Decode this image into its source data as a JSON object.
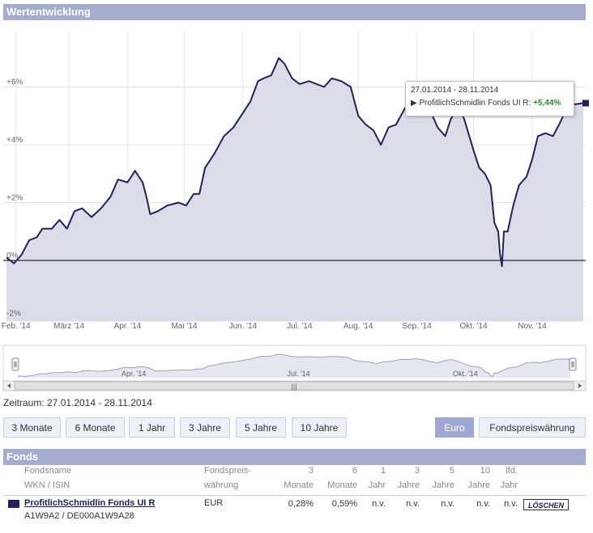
{
  "panel_title": "Wertentwicklung",
  "tooltip": {
    "date_range": "27.01.2014 - 28.11.2014",
    "fund": "ProfitlichSchmidlin Fonds UI R:",
    "change": "+5,44%"
  },
  "chart_data": {
    "type": "line",
    "title": "",
    "xlabel": "",
    "ylabel": "",
    "y_tick_labels": [
      "+6%",
      "+4%",
      "+2%",
      "0%",
      "-2%"
    ],
    "x_tick_labels": [
      "Feb. '14",
      "März '14",
      "Apr. '14",
      "Mai '14",
      "Jun. '14",
      "Jul. '14",
      "Aug. '14",
      "Sep. '14",
      "Okt. '14",
      "Nov. '14"
    ],
    "navigator_labels": [
      "Apr. '14",
      "Jul. '14",
      "Okt. '14"
    ],
    "ylim": [
      -2,
      8
    ],
    "series": [
      {
        "name": "ProfitlichSchmidlin Fonds UI R",
        "color": "#1f2359",
        "points": [
          [
            "2014-01-27",
            0.1
          ],
          [
            "2014-01-31",
            -0.1
          ],
          [
            "2014-02-04",
            0.2
          ],
          [
            "2014-02-08",
            0.7
          ],
          [
            "2014-02-12",
            0.8
          ],
          [
            "2014-02-15",
            1.1
          ],
          [
            "2014-02-20",
            1.1
          ],
          [
            "2014-02-24",
            1.4
          ],
          [
            "2014-02-28",
            1.1
          ],
          [
            "2014-03-04",
            1.7
          ],
          [
            "2014-03-08",
            1.8
          ],
          [
            "2014-03-13",
            1.5
          ],
          [
            "2014-03-18",
            1.8
          ],
          [
            "2014-03-23",
            2.2
          ],
          [
            "2014-03-27",
            2.8
          ],
          [
            "2014-04-01",
            2.7
          ],
          [
            "2014-04-05",
            3.1
          ],
          [
            "2014-04-09",
            2.7
          ],
          [
            "2014-04-11",
            2.2
          ],
          [
            "2014-04-13",
            1.6
          ],
          [
            "2014-04-17",
            1.7
          ],
          [
            "2014-04-22",
            1.9
          ],
          [
            "2014-04-28",
            2.0
          ],
          [
            "2014-05-02",
            1.9
          ],
          [
            "2014-05-06",
            2.3
          ],
          [
            "2014-05-09",
            2.3
          ],
          [
            "2014-05-12",
            3.2
          ],
          [
            "2014-05-17",
            3.7
          ],
          [
            "2014-05-22",
            4.3
          ],
          [
            "2014-05-27",
            4.6
          ],
          [
            "2014-06-01",
            5.1
          ],
          [
            "2014-06-05",
            5.5
          ],
          [
            "2014-06-09",
            6.2
          ],
          [
            "2014-06-12",
            6.3
          ],
          [
            "2014-06-16",
            6.4
          ],
          [
            "2014-06-20",
            7.0
          ],
          [
            "2014-06-23",
            6.8
          ],
          [
            "2014-06-27",
            6.3
          ],
          [
            "2014-07-01",
            6.1
          ],
          [
            "2014-07-06",
            6.2
          ],
          [
            "2014-07-10",
            6.1
          ],
          [
            "2014-07-14",
            6.0
          ],
          [
            "2014-07-18",
            6.3
          ],
          [
            "2014-07-23",
            6.2
          ],
          [
            "2014-07-28",
            6.0
          ],
          [
            "2014-08-01",
            5.0
          ],
          [
            "2014-08-05",
            4.7
          ],
          [
            "2014-08-09",
            4.5
          ],
          [
            "2014-08-13",
            4.0
          ],
          [
            "2014-08-17",
            4.6
          ],
          [
            "2014-08-21",
            4.7
          ],
          [
            "2014-08-26",
            5.3
          ],
          [
            "2014-08-31",
            5.3
          ],
          [
            "2014-09-04",
            5.6
          ],
          [
            "2014-09-08",
            5.2
          ],
          [
            "2014-09-12",
            4.6
          ],
          [
            "2014-09-16",
            4.3
          ],
          [
            "2014-09-19",
            4.9
          ],
          [
            "2014-09-23",
            5.3
          ],
          [
            "2014-09-26",
            4.9
          ],
          [
            "2014-10-01",
            3.8
          ],
          [
            "2014-10-04",
            3.2
          ],
          [
            "2014-10-07",
            3.0
          ],
          [
            "2014-10-10",
            2.6
          ],
          [
            "2014-10-12",
            1.3
          ],
          [
            "2014-10-14",
            1.0
          ],
          [
            "2014-10-15",
            0.2
          ],
          [
            "2014-10-16",
            -0.2
          ],
          [
            "2014-10-17",
            1.0
          ],
          [
            "2014-10-19",
            1.0
          ],
          [
            "2014-10-22",
            1.9
          ],
          [
            "2014-10-25",
            2.6
          ],
          [
            "2014-10-29",
            2.9
          ],
          [
            "2014-11-01",
            3.5
          ],
          [
            "2014-11-04",
            4.3
          ],
          [
            "2014-11-08",
            4.4
          ],
          [
            "2014-11-12",
            4.3
          ],
          [
            "2014-11-16",
            4.8
          ],
          [
            "2014-11-20",
            5.4
          ],
          [
            "2014-11-24",
            5.4
          ],
          [
            "2014-11-28",
            5.44
          ]
        ]
      }
    ],
    "grid": true
  },
  "zeitraum": "Zeitraum: 27.01.2014 - 28.11.2014",
  "period_buttons": [
    "3 Monate",
    "6 Monate",
    "1 Jahr",
    "3 Jahre",
    "5 Jahre",
    "10 Jahre"
  ],
  "currency_buttons": [
    "Euro",
    "Fondspreiswährung"
  ],
  "fonds_title": "Fonds",
  "table": {
    "headers": {
      "name1": "Fondsname",
      "name2": "WKN / ISIN",
      "fp1": "Fondspreis-",
      "fp2": "währung",
      "c1a": "3",
      "c1b": "Monate",
      "c2a": "6",
      "c2b": "Monate",
      "c3a": "1",
      "c3b": "Jahr",
      "c4a": "3",
      "c4b": "Jahre",
      "c5a": "5",
      "c5b": "Jahre",
      "c6a": "10",
      "c6b": "Jahre",
      "c7a": "lfd.",
      "c7b": "Jahr"
    },
    "row": {
      "name": "ProfitlichSchmidlin Fonds UI R",
      "wkn_isin": "A1W9A2 / DE000A1W9A28",
      "currency": "EUR",
      "m3": "0,28%",
      "m6": "0,59%",
      "y1": "n.v.",
      "y3": "n.v.",
      "y5": "n.v.",
      "y10": "n.v.",
      "ytd": "n.v.",
      "delete_label": "LÖSCHEN"
    }
  }
}
